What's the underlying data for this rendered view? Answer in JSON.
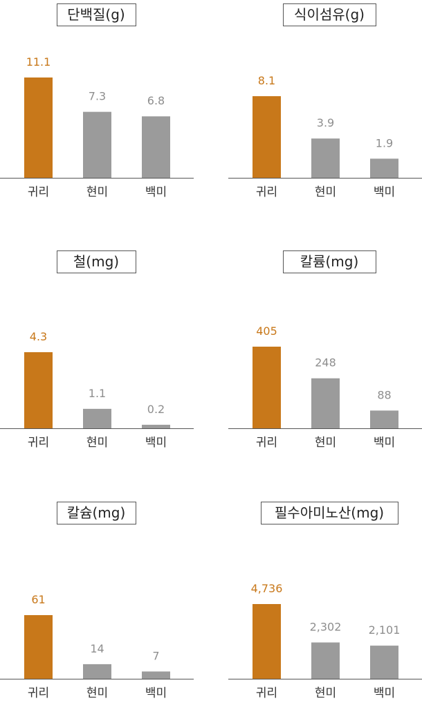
{
  "colors": {
    "highlight": "#C8781A",
    "bar": "#9B9B9B",
    "value_highlight": "#C8781A",
    "value_muted": "#8E8E8E",
    "axis": "#555555",
    "title_border": "#555555"
  },
  "chart_data": [
    {
      "type": "bar",
      "title": "단백질(g)",
      "categories": [
        "귀리",
        "현미",
        "백미"
      ],
      "values": [
        11.1,
        7.3,
        6.8
      ],
      "value_labels": [
        "11.1",
        "7.3",
        "6.8"
      ],
      "highlight_index": 0
    },
    {
      "type": "bar",
      "title": "식이섬유(g)",
      "categories": [
        "귀리",
        "현미",
        "백미"
      ],
      "values": [
        8.1,
        3.9,
        1.9
      ],
      "value_labels": [
        "8.1",
        "3.9",
        "1.9"
      ],
      "highlight_index": 0
    },
    {
      "type": "bar",
      "title": "철(mg)",
      "categories": [
        "귀리",
        "현미",
        "백미"
      ],
      "values": [
        4.3,
        1.1,
        0.2
      ],
      "value_labels": [
        "4.3",
        "1.1",
        "0.2"
      ],
      "highlight_index": 0
    },
    {
      "type": "bar",
      "title": "칼륨(mg)",
      "categories": [
        "귀리",
        "현미",
        "백미"
      ],
      "values": [
        405,
        248,
        88
      ],
      "value_labels": [
        "405",
        "248",
        "88"
      ],
      "highlight_index": 0
    },
    {
      "type": "bar",
      "title": "칼슘(mg)",
      "categories": [
        "귀리",
        "현미",
        "백미"
      ],
      "values": [
        61,
        14,
        7
      ],
      "value_labels": [
        "61",
        "14",
        "7"
      ],
      "highlight_index": 0
    },
    {
      "type": "bar",
      "title": "필수아미노산(mg)",
      "categories": [
        "귀리",
        "현미",
        "백미"
      ],
      "values": [
        4736,
        2302,
        2101
      ],
      "value_labels": [
        "4,736",
        "2,302",
        "2,101"
      ],
      "highlight_index": 0
    }
  ]
}
